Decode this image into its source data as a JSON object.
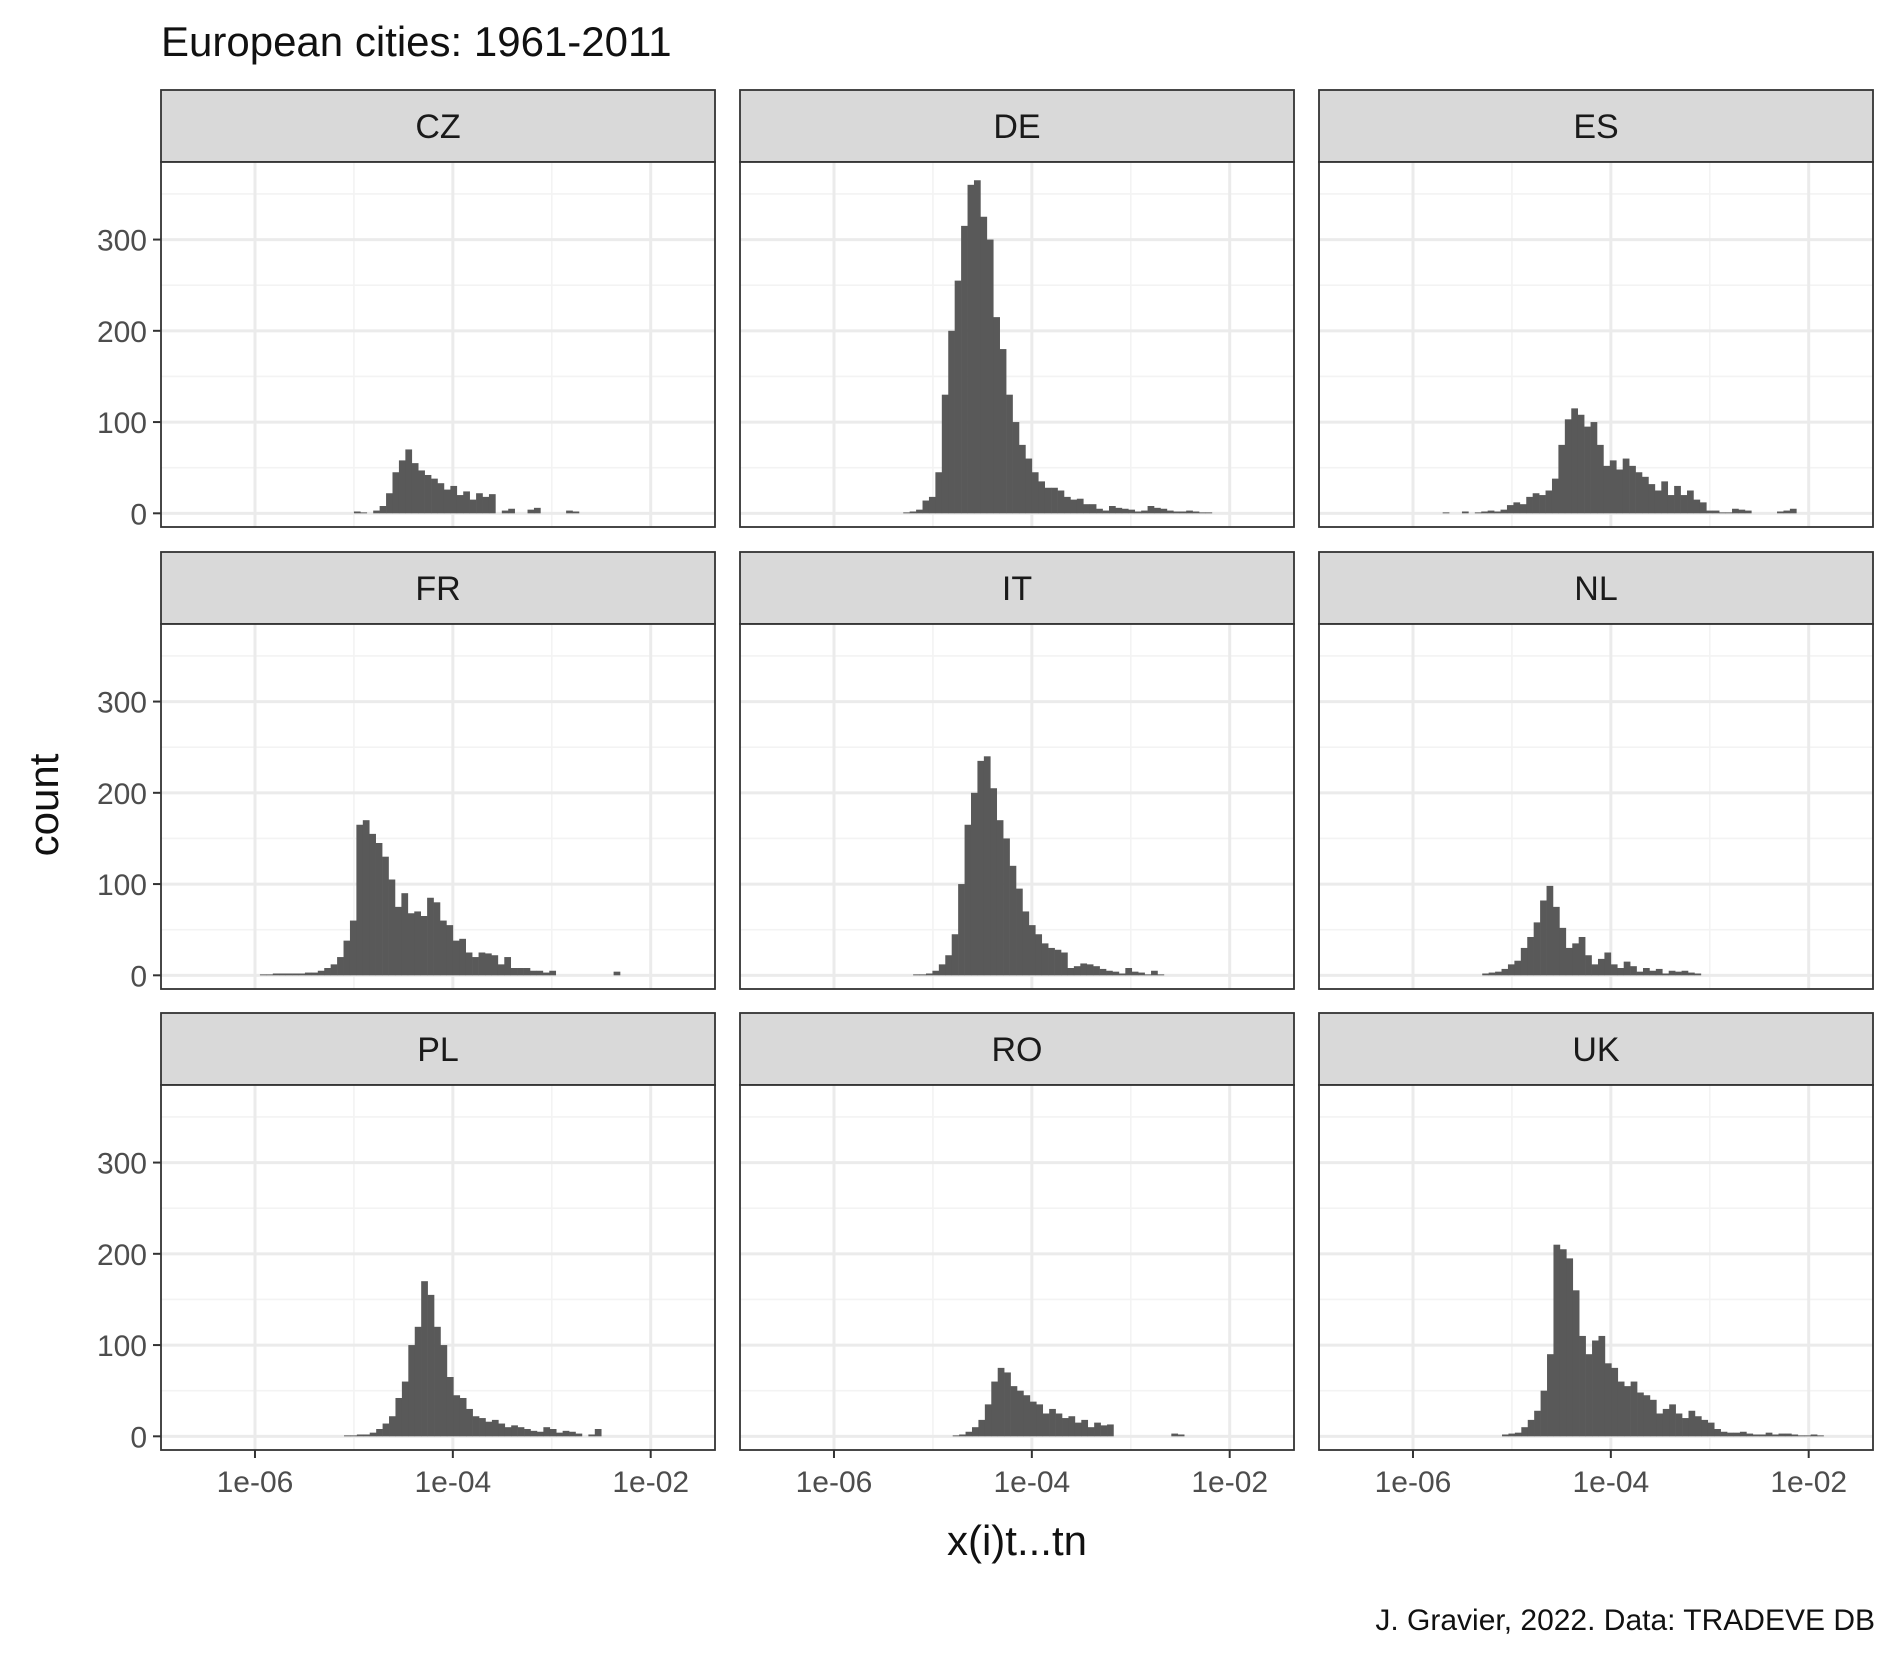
{
  "chart_data": {
    "type": "bar",
    "subtype": "faceted-histogram",
    "title": "European cities: 1961-2011",
    "xlabel": "x(i)t...tn",
    "ylabel": "count",
    "caption": "J. Gravier, 2022. Data: TRADEVE DB",
    "x_scale": "log10",
    "x_range_log10": [
      -6.95,
      -1.35
    ],
    "x_ticks": [
      {
        "value_log10": -6,
        "label": "1e-06"
      },
      {
        "value_log10": -4,
        "label": "1e-04"
      },
      {
        "value_log10": -2,
        "label": "1e-02"
      }
    ],
    "ylim": [
      -15,
      385
    ],
    "y_ticks": [
      0,
      100,
      200,
      300
    ],
    "grid": true,
    "bar_color": "#595959",
    "facet_layout": {
      "rows": 3,
      "cols": 3
    },
    "facets": [
      {
        "label": "CZ",
        "x_log10_start": -5.0,
        "bin_width_log10": 0.065,
        "counts": [
          2,
          1,
          0,
          3,
          8,
          22,
          45,
          58,
          70,
          55,
          47,
          42,
          38,
          33,
          26,
          30,
          20,
          24,
          15,
          22,
          18,
          21,
          0,
          3,
          5,
          0,
          0,
          4,
          6,
          0,
          0,
          0,
          0,
          3,
          2
        ]
      },
      {
        "label": "DE",
        "x_log10_start": -5.3,
        "bin_width_log10": 0.065,
        "counts": [
          1,
          2,
          4,
          14,
          18,
          45,
          130,
          200,
          255,
          315,
          360,
          365,
          325,
          300,
          215,
          180,
          130,
          100,
          75,
          60,
          45,
          35,
          28,
          28,
          25,
          18,
          15,
          16,
          10,
          10,
          5,
          3,
          8,
          6,
          5,
          4,
          2,
          3,
          8,
          6,
          5,
          3,
          2,
          2,
          3,
          2,
          1,
          1
        ]
      },
      {
        "label": "ES",
        "x_log10_start": -5.7,
        "bin_width_log10": 0.065,
        "counts": [
          1,
          0,
          0,
          2,
          0,
          1,
          2,
          3,
          2,
          4,
          9,
          12,
          10,
          18,
          22,
          20,
          25,
          38,
          75,
          103,
          115,
          108,
          95,
          100,
          75,
          52,
          58,
          48,
          60,
          52,
          45,
          40,
          32,
          25,
          35,
          20,
          30,
          20,
          25,
          15,
          12,
          3,
          3,
          1,
          1,
          5,
          4,
          3,
          0,
          0,
          0,
          0,
          2,
          3,
          5
        ]
      },
      {
        "label": "FR",
        "x_log10_start": -5.95,
        "bin_width_log10": 0.065,
        "counts": [
          1,
          1,
          2,
          2,
          2,
          2,
          2,
          3,
          3,
          5,
          8,
          12,
          20,
          38,
          60,
          165,
          170,
          155,
          145,
          130,
          105,
          75,
          90,
          68,
          70,
          65,
          85,
          80,
          60,
          55,
          38,
          40,
          25,
          20,
          25,
          24,
          22,
          12,
          20,
          8,
          8,
          8,
          5,
          5,
          3,
          5,
          0,
          0,
          0,
          0,
          0,
          0,
          0,
          0,
          0,
          4
        ]
      },
      {
        "label": "IT",
        "x_log10_start": -5.2,
        "bin_width_log10": 0.065,
        "counts": [
          1,
          1,
          2,
          5,
          12,
          22,
          45,
          100,
          165,
          200,
          235,
          240,
          205,
          170,
          150,
          120,
          95,
          70,
          55,
          45,
          35,
          30,
          28,
          25,
          8,
          10,
          13,
          12,
          10,
          7,
          5,
          4,
          2,
          8,
          4,
          3,
          1,
          5,
          1
        ]
      },
      {
        "label": "NL",
        "x_log10_start": -5.3,
        "bin_width_log10": 0.065,
        "counts": [
          2,
          3,
          4,
          7,
          12,
          16,
          30,
          42,
          58,
          82,
          98,
          75,
          52,
          30,
          35,
          42,
          22,
          12,
          18,
          25,
          12,
          8,
          15,
          10,
          4,
          8,
          5,
          7,
          2,
          5,
          4,
          5,
          3,
          2
        ]
      },
      {
        "label": "PL",
        "x_log10_start": -5.1,
        "bin_width_log10": 0.065,
        "counts": [
          1,
          1,
          2,
          2,
          4,
          8,
          14,
          22,
          42,
          60,
          100,
          120,
          170,
          155,
          120,
          100,
          65,
          45,
          42,
          30,
          22,
          20,
          16,
          18,
          14,
          10,
          12,
          10,
          8,
          6,
          5,
          10,
          8,
          4,
          6,
          5,
          3,
          0,
          2,
          8
        ]
      },
      {
        "label": "RO",
        "x_log10_start": -4.8,
        "bin_width_log10": 0.065,
        "counts": [
          1,
          2,
          5,
          10,
          18,
          35,
          60,
          75,
          70,
          55,
          50,
          45,
          38,
          35,
          25,
          30,
          25,
          20,
          22,
          15,
          18,
          10,
          15,
          12,
          13,
          0,
          0,
          0,
          0,
          0,
          0,
          0,
          0,
          0,
          3,
          2
        ]
      },
      {
        "label": "UK",
        "x_log10_start": -5.1,
        "bin_width_log10": 0.065,
        "counts": [
          2,
          3,
          4,
          10,
          18,
          28,
          50,
          90,
          210,
          205,
          195,
          160,
          110,
          90,
          105,
          110,
          80,
          75,
          60,
          55,
          60,
          48,
          45,
          40,
          25,
          30,
          35,
          25,
          20,
          28,
          22,
          18,
          15,
          8,
          5,
          4,
          4,
          5,
          3,
          2,
          2,
          4,
          2,
          3,
          3,
          2,
          1,
          1,
          2,
          1
        ]
      }
    ]
  }
}
